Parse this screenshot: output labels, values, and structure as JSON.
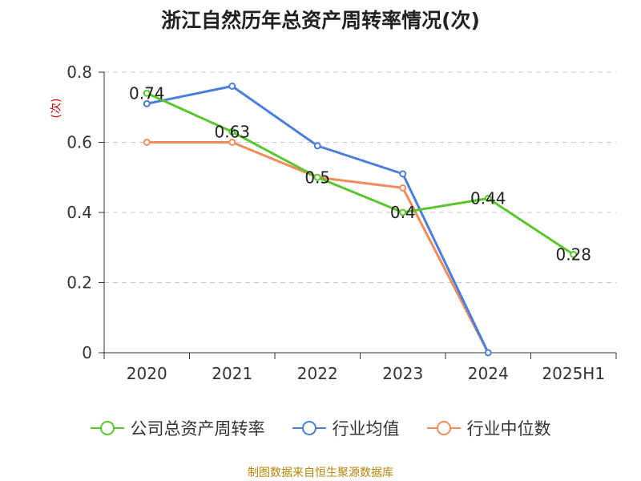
{
  "title": "浙江自然历年总资产周转率情况(次)",
  "unit_label": "(次)",
  "source": "制图数据来自恒生聚源数据库",
  "colors": {
    "company": "#5ac52c",
    "industry_avg": "#4a7edc",
    "industry_median": "#f48b5a"
  },
  "chart_data": {
    "type": "line",
    "categories": [
      "2020",
      "2021",
      "2022",
      "2023",
      "2024",
      "2025H1"
    ],
    "ylim": [
      0,
      0.8
    ],
    "yticks": [
      "0",
      "0.2",
      "0.4",
      "0.6",
      "0.8"
    ],
    "grid": true,
    "legend_position": "bottom",
    "series": [
      {
        "key": "company",
        "name": "公司总资产周转率",
        "values": [
          0.74,
          0.63,
          0.5,
          0.4,
          0.44,
          0.28
        ],
        "labels": [
          "0.74",
          "0.63",
          "0.5",
          "0.4",
          "0.44",
          "0.28"
        ]
      },
      {
        "key": "industry_avg",
        "name": "行业均值",
        "values": [
          0.71,
          0.76,
          0.59,
          0.51,
          0,
          null
        ]
      },
      {
        "key": "industry_median",
        "name": "行业中位数",
        "values": [
          0.6,
          0.6,
          0.5,
          0.47,
          0,
          null
        ]
      }
    ]
  }
}
